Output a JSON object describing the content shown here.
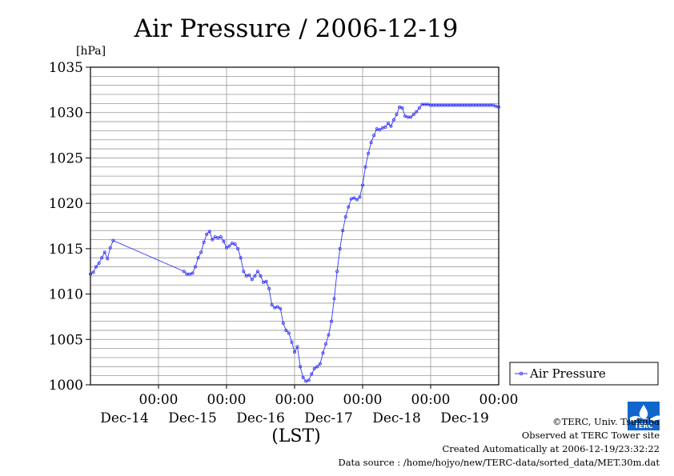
{
  "chart_data": {
    "type": "line",
    "title": "Air Pressure / 2006-12-19",
    "ylabel": "[hPa]",
    "xlabel": "(LST)",
    "ylim": [
      1000,
      1035
    ],
    "yticks": [
      "1000",
      "1005",
      "1010",
      "1015",
      "1020",
      "1025",
      "1030",
      "1035"
    ],
    "xlim_hours": [
      0,
      144
    ],
    "xticks": [
      {
        "time": "00:00",
        "day": "Dec-14"
      },
      {
        "time": "00:00",
        "day": "Dec-15"
      },
      {
        "time": "00:00",
        "day": "Dec-16"
      },
      {
        "time": "00:00",
        "day": "Dec-17"
      },
      {
        "time": "00:00",
        "day": "Dec-18"
      },
      {
        "time": "00:00",
        "day": "Dec-19"
      }
    ],
    "grid": true,
    "legend": "right",
    "series": [
      {
        "name": "Air Pressure",
        "color": "#3333ff",
        "x_hours": [
          0,
          1,
          2,
          3,
          4,
          5,
          6,
          7,
          8,
          33,
          34,
          35,
          36,
          37,
          38,
          39,
          40,
          41,
          42,
          43,
          44,
          45,
          46,
          47,
          48,
          49,
          50,
          51,
          52,
          53,
          54,
          55,
          56,
          57,
          58,
          59,
          60,
          61,
          62,
          63,
          64,
          65,
          66,
          67,
          68,
          69,
          70,
          71,
          72,
          73,
          74,
          75,
          76,
          77,
          78,
          79,
          80,
          81,
          82,
          83,
          84,
          85,
          86,
          87,
          88,
          89,
          90,
          91,
          92,
          93,
          94,
          95,
          96,
          97,
          98,
          99,
          100,
          101,
          102,
          103,
          104,
          105,
          106,
          107,
          108,
          109,
          110,
          111,
          112,
          113,
          114,
          115,
          116,
          117,
          118,
          119,
          120,
          121,
          122,
          123,
          124,
          125,
          126,
          127,
          128,
          129,
          130,
          131,
          132,
          133,
          134,
          135,
          136,
          137,
          138,
          139,
          140,
          141,
          142,
          143,
          144
        ],
        "values": [
          1012.2,
          1012.4,
          1013.0,
          1013.4,
          1014.0,
          1014.6,
          1013.9,
          1015.1,
          1015.9,
          1012.5,
          1012.2,
          1012.2,
          1012.3,
          1013.0,
          1014.0,
          1014.6,
          1015.7,
          1016.6,
          1016.9,
          1016.0,
          1016.3,
          1016.2,
          1016.3,
          1015.8,
          1015.1,
          1015.3,
          1015.6,
          1015.5,
          1015.0,
          1014.0,
          1012.5,
          1012.0,
          1012.1,
          1011.6,
          1012.0,
          1012.5,
          1012.0,
          1011.3,
          1011.4,
          1010.6,
          1008.8,
          1008.5,
          1008.6,
          1008.4,
          1006.8,
          1006.0,
          1005.7,
          1004.7,
          1003.6,
          1004.2,
          1002.0,
          1000.8,
          1000.4,
          1000.5,
          1001.2,
          1001.8,
          1002.0,
          1002.3,
          1003.5,
          1004.5,
          1005.5,
          1007.0,
          1009.5,
          1012.5,
          1015.0,
          1017.0,
          1018.5,
          1019.6,
          1020.5,
          1020.6,
          1020.4,
          1020.7,
          1022.0,
          1024.0,
          1025.5,
          1026.7,
          1027.5,
          1028.2,
          1028.1,
          1028.3,
          1028.4,
          1028.8,
          1028.5,
          1029.2,
          1029.8,
          1030.6,
          1030.5,
          1029.6,
          1029.5,
          1029.5,
          1029.8,
          1030.1,
          1030.5,
          1030.9,
          1030.9,
          1030.9,
          1030.8,
          1030.8,
          1030.8,
          1030.8,
          1030.8,
          1030.8,
          1030.8,
          1030.8,
          1030.8,
          1030.8,
          1030.8,
          1030.8,
          1030.8,
          1030.8,
          1030.8,
          1030.8,
          1030.8,
          1030.8,
          1030.8,
          1030.8,
          1030.8,
          1030.8,
          1030.8,
          1030.7,
          1030.6
        ]
      }
    ]
  },
  "legend": {
    "label": "Air Pressure"
  },
  "credits": {
    "line1": "©TERC, Univ. Tsukuba",
    "line2": "Observed at TERC Tower site",
    "line3": "Created Automatically at 2006-12-19/23:32:22",
    "line4": "Data source : /home/hojyo/new/TERC-data/sorted_data/MET.30m.dat"
  },
  "logo": {
    "text": "TERC",
    "icon": "terc-logo-icon",
    "color": "#1166cc"
  }
}
